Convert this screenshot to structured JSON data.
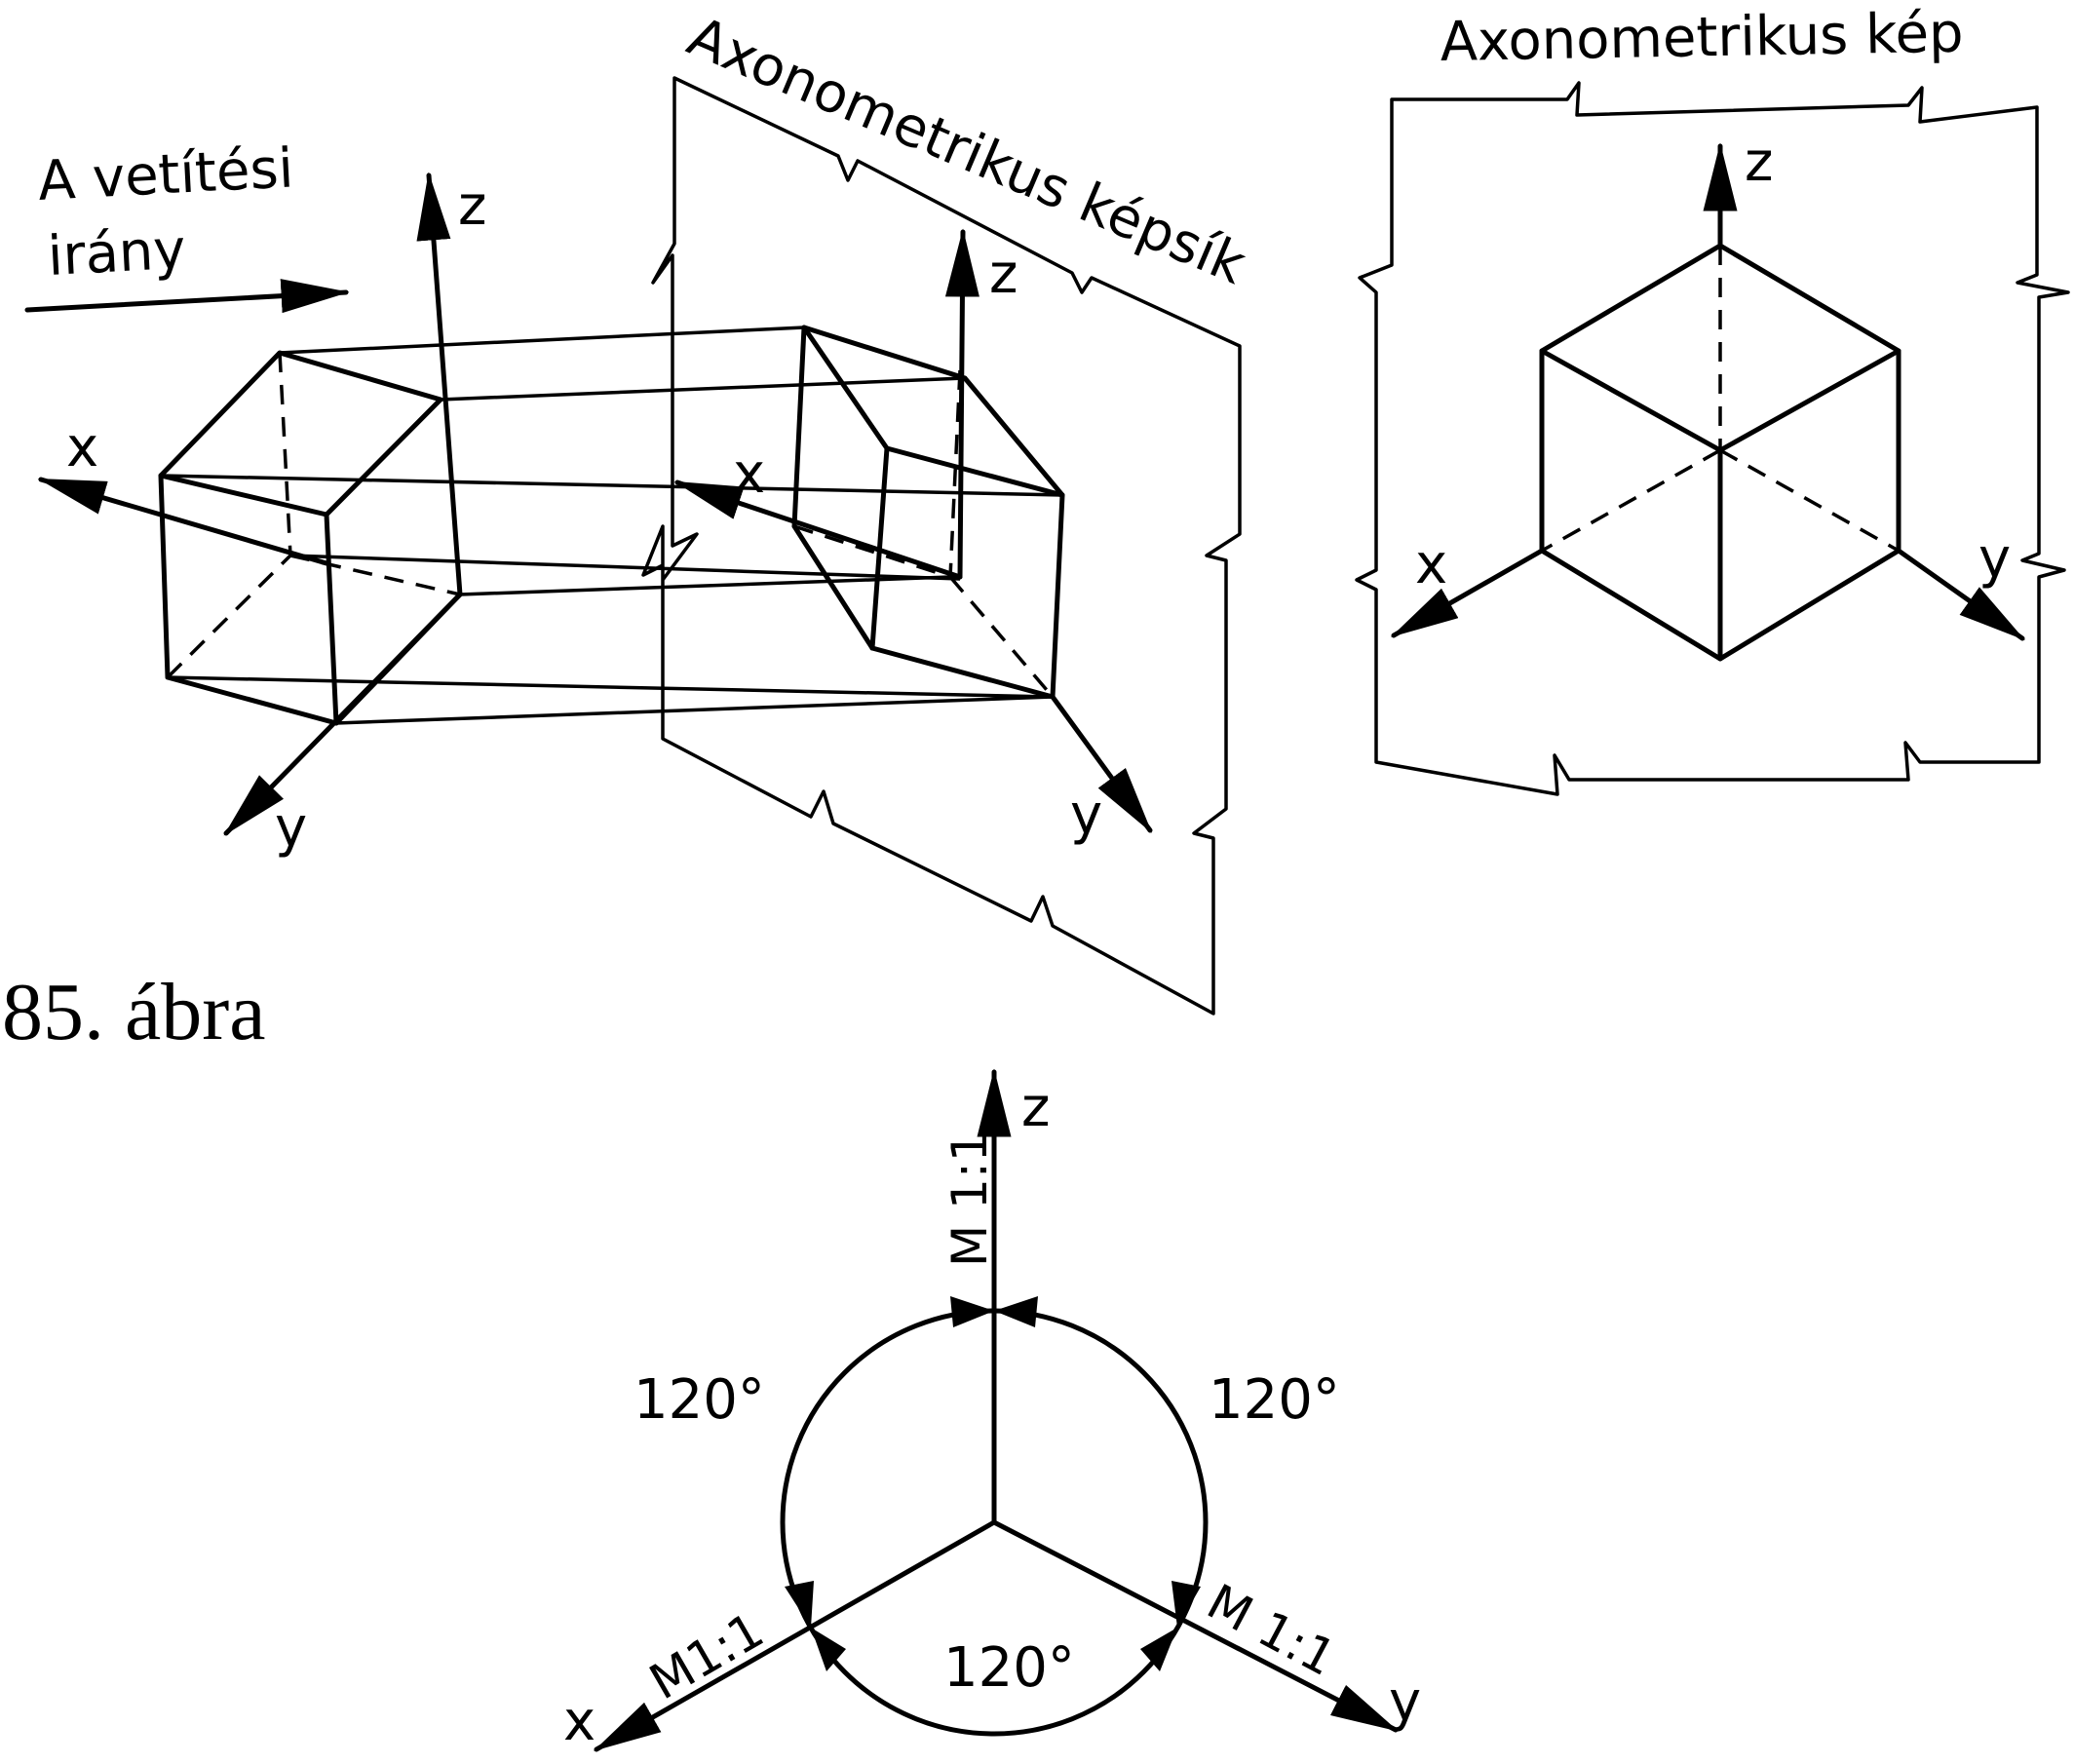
{
  "figure": {
    "caption": "85. ábra",
    "left": {
      "direction_label": [
        "A vetítési",
        "irány"
      ],
      "axes": {
        "x": "x",
        "y": "y",
        "z": "z"
      }
    },
    "plane": {
      "label": "Axonometrikus képsík",
      "axes": {
        "x": "x",
        "y": "y",
        "z": "z"
      }
    },
    "image": {
      "label": "Axonometrikus kép",
      "axes": {
        "x": "x",
        "y": "y",
        "z": "z"
      }
    },
    "angles": {
      "axes": {
        "x": "x",
        "y": "y",
        "z": "z"
      },
      "angle_left": "120°",
      "angle_right": "120°",
      "angle_bottom": "120°",
      "scale_z": "M 1:1",
      "scale_x": "M1:1",
      "scale_y": "M 1:1"
    }
  }
}
